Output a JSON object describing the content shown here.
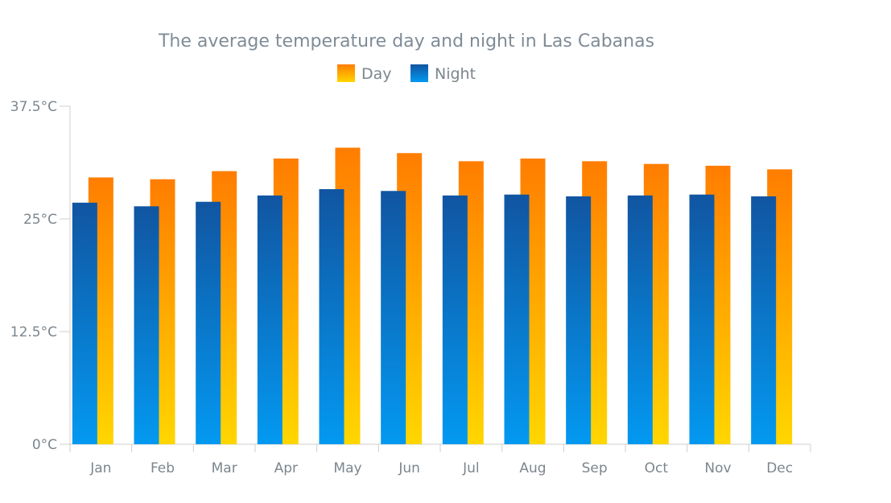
{
  "chart_data": {
    "type": "bar",
    "title": "The average temperature day and night in Las Cabanas",
    "categories": [
      "Jan",
      "Feb",
      "Mar",
      "Apr",
      "May",
      "Jun",
      "Jul",
      "Aug",
      "Sep",
      "Oct",
      "Nov",
      "Dec"
    ],
    "series": [
      {
        "name": "Night",
        "values": [
          26.8,
          26.4,
          26.9,
          27.6,
          28.3,
          28.1,
          27.6,
          27.7,
          27.5,
          27.6,
          27.7,
          27.5
        ],
        "color_top": "#1155a1",
        "color_bottom": "#0399f1"
      },
      {
        "name": "Day",
        "values": [
          29.6,
          29.4,
          30.3,
          31.7,
          32.9,
          32.3,
          31.4,
          31.7,
          31.4,
          31.1,
          30.9,
          30.5
        ],
        "color_top": "#ff7d00",
        "color_bottom": "#ffd600"
      }
    ],
    "ylim": [
      0,
      37.5
    ],
    "yticks": [
      0,
      12.5,
      25,
      37.5
    ],
    "ytick_labels": [
      "0°C",
      "12.5°C",
      "25°C",
      "37.5°C"
    ],
    "xlabel": "",
    "ylabel": "",
    "grid": false,
    "legend": {
      "position": "top-center",
      "items": [
        "Day",
        "Night"
      ]
    },
    "colors": {
      "title": "#7f8c97",
      "text": "#7c868e",
      "axis": "#cfcfcf"
    }
  }
}
